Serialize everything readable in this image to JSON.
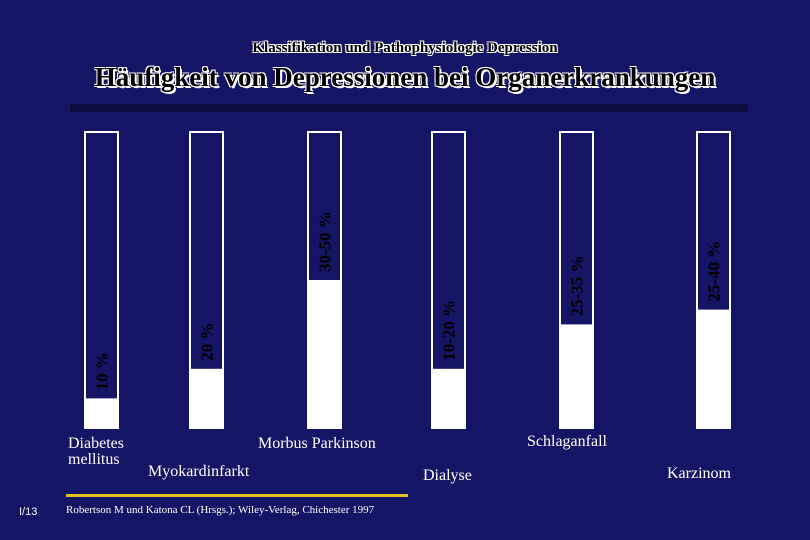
{
  "header": {
    "supertitle": "Klassifikation und Pathophysiologie Depression",
    "title": "Häufigkeit von Depressionen bei Organerkrankungen"
  },
  "chart_data": {
    "type": "bar",
    "categories": [
      "Diabetes\nmellitus",
      "Myokardinfarkt",
      "Morbus Parkinson",
      "Dialyse",
      "Schlaganfall",
      "Karzinom"
    ],
    "value_labels": [
      "10 %",
      "20 %",
      "30-50 %",
      "10-20 %",
      "25-35 %",
      "25-40 %"
    ],
    "values": [
      10,
      20,
      50,
      20,
      35,
      40
    ],
    "ylim": [
      0,
      100
    ],
    "bar_color": "#ffffff",
    "background": "#151565"
  },
  "footer": {
    "source": "Robertson M und Katona CL (Hrsgs.); Wiley-Verlag, Chichester 1997",
    "slide_number": "I/13"
  }
}
